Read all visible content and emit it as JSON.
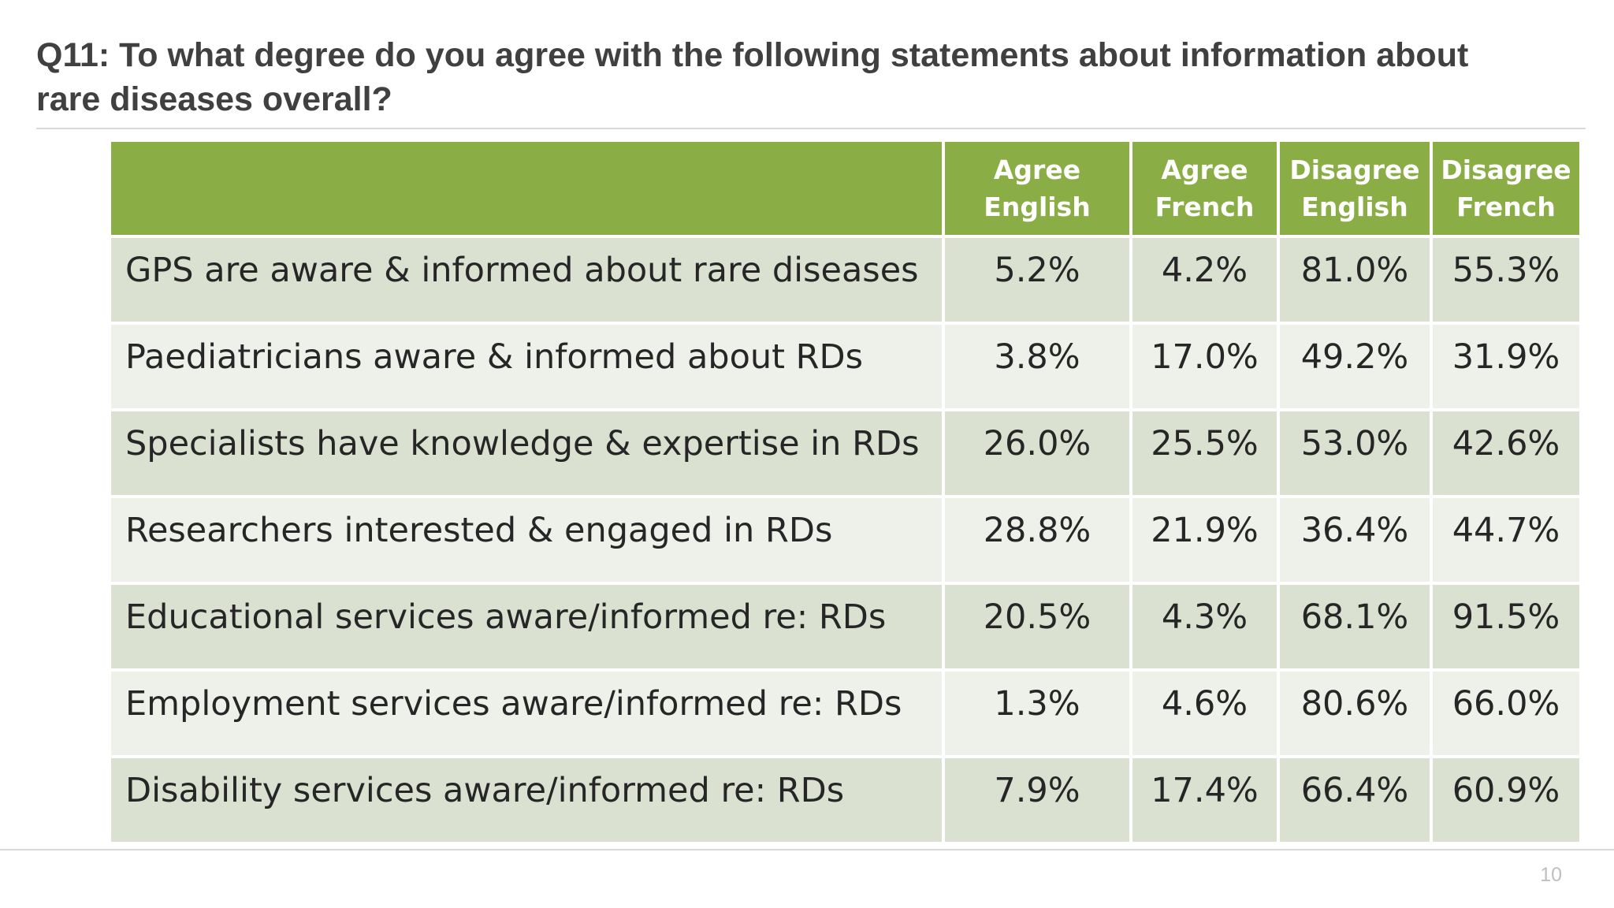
{
  "title": "Q11: To what degree do you agree with the following statements about information about rare diseases overall?",
  "page_number": "10",
  "table": {
    "headers": [
      "",
      "Agree English",
      "Agree French",
      "Disagree English",
      "Disagree French"
    ],
    "rows": [
      [
        "GPS are aware & informed about rare diseases",
        "5.2%",
        "4.2%",
        "81.0%",
        "55.3%"
      ],
      [
        "Paediatricians aware & informed about RDs",
        "3.8%",
        "17.0%",
        "49.2%",
        "31.9%"
      ],
      [
        "Specialists have knowledge & expertise in RDs",
        "26.0%",
        "25.5%",
        "53.0%",
        "42.6%"
      ],
      [
        "Researchers interested & engaged in RDs",
        "28.8%",
        "21.9%",
        "36.4%",
        "44.7%"
      ],
      [
        "Educational services aware/informed re: RDs",
        "20.5%",
        "4.3%",
        "68.1%",
        "91.5%"
      ],
      [
        "Employment services aware/informed re: RDs",
        "1.3%",
        "4.6%",
        "80.6%",
        "66.0%"
      ],
      [
        "Disability services aware/informed re: RDs",
        "7.9%",
        "17.4%",
        "66.4%",
        "60.9%"
      ]
    ]
  },
  "colors": {
    "header_background": "#8aad46",
    "row_dark": "#dbe1d1",
    "row_light": "#eef0ea",
    "title_text": "#404040"
  }
}
